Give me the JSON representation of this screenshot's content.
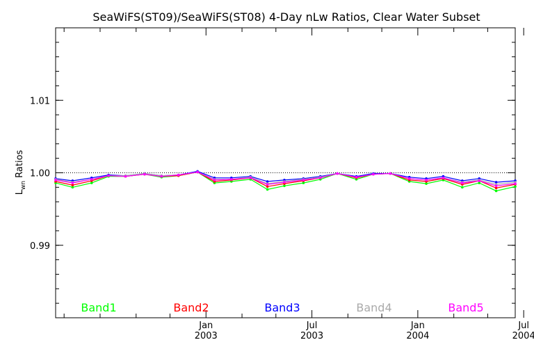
{
  "chart_data": {
    "type": "line",
    "title": "SeaWiFS(ST09)/SeaWiFS(ST08) 4-Day nLw Ratios, Clear Water Subset",
    "ylabel_main": "L",
    "ylabel_sub": "wn",
    "ylabel_rest": " Ratios",
    "ylim": [
      0.98,
      1.02
    ],
    "yticks": [
      {
        "value": 0.99,
        "label": "0.99"
      },
      {
        "value": 1.0,
        "label": "1.00"
      },
      {
        "value": 1.01,
        "label": "1.01"
      }
    ],
    "reference_line": 1.0,
    "xlim": [
      2002.29,
      2004.46
    ],
    "xticks": [
      {
        "value": 2003.0,
        "line1": "Jan",
        "line2": "2003"
      },
      {
        "value": 2003.5,
        "line1": "Jul",
        "line2": "2003"
      },
      {
        "value": 2004.0,
        "line1": "Jan",
        "line2": "2004"
      },
      {
        "value": 2004.5,
        "line1": "Jul",
        "line2": "2004"
      }
    ],
    "minor_xticks": [
      2002.33,
      2002.5,
      2002.67,
      2002.83,
      2003.17,
      2003.33,
      2003.67,
      2003.83,
      2004.17,
      2004.33
    ],
    "x": [
      2002.29,
      2002.37,
      2002.46,
      2002.54,
      2002.62,
      2002.71,
      2002.79,
      2002.87,
      2002.96,
      2003.04,
      2003.12,
      2003.21,
      2003.29,
      2003.37,
      2003.46,
      2003.54,
      2003.62,
      2003.71,
      2003.79,
      2003.87,
      2003.96,
      2004.04,
      2004.12,
      2004.21,
      2004.29,
      2004.37,
      2004.46
    ],
    "series": [
      {
        "name": "Band1",
        "color": "#00ff00",
        "values": [
          0.9986,
          0.998,
          0.9986,
          0.9995,
          0.9995,
          0.9998,
          0.9994,
          0.9996,
          1.0001,
          0.9986,
          0.9988,
          0.9991,
          0.9977,
          0.9982,
          0.9986,
          0.9991,
          0.9999,
          0.9991,
          0.9998,
          0.9999,
          0.9988,
          0.9985,
          0.999,
          0.998,
          0.9986,
          0.9975,
          0.9981
        ]
      },
      {
        "name": "Band2",
        "color": "#ff0000",
        "values": [
          0.9988,
          0.9983,
          0.9989,
          0.9996,
          0.9995,
          0.9998,
          0.9995,
          0.9996,
          1.0001,
          0.9988,
          0.999,
          0.9993,
          0.9981,
          0.9985,
          0.9989,
          0.9993,
          0.9999,
          0.9993,
          0.9998,
          0.9999,
          0.999,
          0.9988,
          0.9992,
          0.9984,
          0.9989,
          0.9979,
          0.9984
        ]
      },
      {
        "name": "Band3",
        "color": "#0000ff",
        "values": [
          0.9992,
          0.9989,
          0.9993,
          0.9997,
          0.9996,
          0.9999,
          0.9996,
          0.9997,
          1.0002,
          0.9993,
          0.9993,
          0.9995,
          0.9988,
          0.999,
          0.9992,
          0.9995,
          0.9999,
          0.9995,
          0.9999,
          0.9999,
          0.9994,
          0.9992,
          0.9995,
          0.9989,
          0.9992,
          0.9987,
          0.9989
        ]
      },
      {
        "name": "Band4",
        "color": "#aaaaaa",
        "values": [
          0.9991,
          0.9987,
          0.9991,
          0.9996,
          0.9996,
          0.9999,
          0.9996,
          0.9997,
          1.0001,
          0.9991,
          0.9991,
          0.9994,
          0.9985,
          0.9988,
          0.9991,
          0.9994,
          0.9999,
          0.9994,
          0.9998,
          0.9999,
          0.9992,
          0.999,
          0.9993,
          0.9987,
          0.999,
          0.9984,
          0.9987
        ]
      },
      {
        "name": "Band5",
        "color": "#ff00ff",
        "values": [
          0.999,
          0.9986,
          0.9991,
          0.9996,
          0.9995,
          0.9998,
          0.9995,
          0.9997,
          1.0001,
          0.999,
          0.9991,
          0.9993,
          0.9984,
          0.9987,
          0.999,
          0.9993,
          0.9999,
          0.9994,
          0.9998,
          0.9999,
          0.9992,
          0.999,
          0.9993,
          0.9986,
          0.9989,
          0.9982,
          0.9985
        ]
      }
    ],
    "legend": {
      "placement": "bottom inside plot, single row"
    },
    "grid": false
  }
}
